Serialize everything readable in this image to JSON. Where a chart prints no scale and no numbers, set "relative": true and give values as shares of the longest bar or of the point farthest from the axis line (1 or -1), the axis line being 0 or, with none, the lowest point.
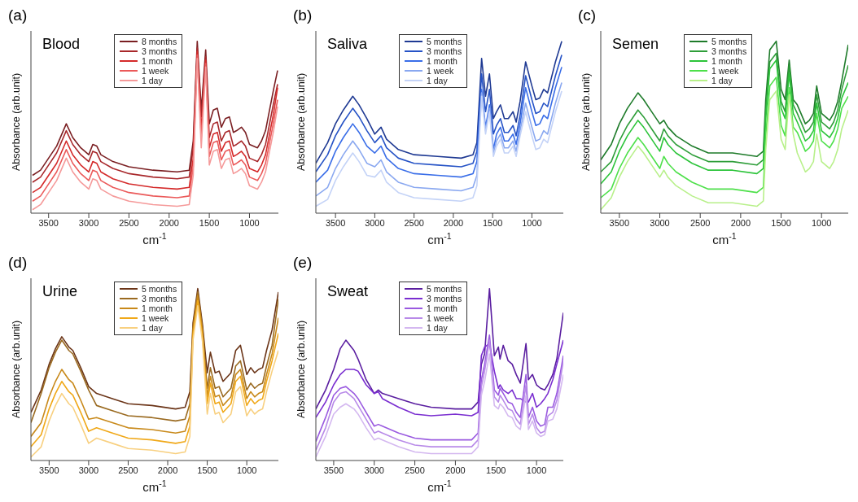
{
  "chart_data": [
    {
      "type": "line",
      "title": "(a)",
      "subtitle": "Blood",
      "xlabel": "cm$^{-1}$",
      "ylabel": "Absorbance (arb.unit)",
      "relative": true,
      "legend": "top",
      "xlim": [
        3720,
        640
      ],
      "xticks": [
        3500,
        3000,
        2500,
        2000,
        1500,
        1000
      ],
      "x": [
        3700,
        3600,
        3500,
        3400,
        3280,
        3200,
        3100,
        3000,
        2950,
        2900,
        2850,
        2700,
        2500,
        2200,
        1900,
        1750,
        1700,
        1650,
        1600,
        1545,
        1500,
        1450,
        1400,
        1350,
        1300,
        1250,
        1200,
        1160,
        1100,
        1050,
        1000,
        900,
        850,
        800,
        750,
        700,
        650
      ],
      "series": [
        {
          "name": "8 months",
          "color": "#7a1f22",
          "values": [
            0.22,
            0.25,
            0.32,
            0.39,
            0.52,
            0.44,
            0.38,
            0.34,
            0.4,
            0.39,
            0.34,
            0.3,
            0.27,
            0.25,
            0.24,
            0.25,
            0.42,
            1.0,
            0.6,
            0.95,
            0.52,
            0.6,
            0.61,
            0.5,
            0.55,
            0.56,
            0.47,
            0.48,
            0.5,
            0.47,
            0.4,
            0.38,
            0.42,
            0.48,
            0.6,
            0.72,
            0.83
          ]
        },
        {
          "name": "3 months",
          "color": "#a8282b",
          "values": [
            0.18,
            0.21,
            0.28,
            0.35,
            0.48,
            0.4,
            0.34,
            0.3,
            0.36,
            0.35,
            0.3,
            0.26,
            0.23,
            0.21,
            0.2,
            0.21,
            0.38,
            0.96,
            0.56,
            0.91,
            0.44,
            0.52,
            0.53,
            0.42,
            0.47,
            0.48,
            0.39,
            0.4,
            0.42,
            0.39,
            0.32,
            0.3,
            0.34,
            0.4,
            0.52,
            0.64,
            0.75
          ]
        },
        {
          "name": "1 month",
          "color": "#d42a2a",
          "values": [
            0.12,
            0.15,
            0.22,
            0.29,
            0.42,
            0.34,
            0.28,
            0.24,
            0.3,
            0.29,
            0.24,
            0.2,
            0.17,
            0.15,
            0.14,
            0.15,
            0.32,
            0.94,
            0.48,
            0.89,
            0.38,
            0.46,
            0.47,
            0.36,
            0.41,
            0.42,
            0.33,
            0.34,
            0.36,
            0.33,
            0.26,
            0.24,
            0.28,
            0.34,
            0.46,
            0.58,
            0.73
          ]
        },
        {
          "name": "1 week",
          "color": "#eb5a5a",
          "values": [
            0.07,
            0.1,
            0.17,
            0.24,
            0.37,
            0.29,
            0.23,
            0.19,
            0.25,
            0.24,
            0.19,
            0.15,
            0.12,
            0.1,
            0.09,
            0.1,
            0.27,
            0.92,
            0.44,
            0.87,
            0.33,
            0.41,
            0.42,
            0.31,
            0.36,
            0.37,
            0.28,
            0.29,
            0.31,
            0.28,
            0.21,
            0.19,
            0.23,
            0.29,
            0.41,
            0.53,
            0.66
          ]
        },
        {
          "name": "1 day",
          "color": "#f59a9a",
          "values": [
            0.02,
            0.05,
            0.12,
            0.19,
            0.32,
            0.24,
            0.18,
            0.14,
            0.2,
            0.19,
            0.14,
            0.1,
            0.07,
            0.05,
            0.04,
            0.05,
            0.22,
            0.9,
            0.38,
            0.85,
            0.28,
            0.36,
            0.37,
            0.26,
            0.31,
            0.32,
            0.23,
            0.24,
            0.26,
            0.23,
            0.16,
            0.14,
            0.18,
            0.24,
            0.36,
            0.48,
            0.62
          ]
        }
      ]
    },
    {
      "type": "line",
      "title": "(b)",
      "subtitle": "Saliva",
      "xlabel": "cm$^{-1}$",
      "ylabel": "Absorbance (arb.unit)",
      "relative": true,
      "legend": "top",
      "xlim": [
        3750,
        600
      ],
      "xticks": [
        3500,
        3000,
        2500,
        2000,
        1500,
        1000
      ],
      "x": [
        3750,
        3600,
        3500,
        3400,
        3280,
        3200,
        3100,
        3000,
        2920,
        2850,
        2700,
        2500,
        2200,
        1900,
        1750,
        1700,
        1640,
        1590,
        1540,
        1490,
        1450,
        1400,
        1350,
        1300,
        1240,
        1200,
        1150,
        1080,
        1000,
        950,
        900,
        850,
        800,
        700,
        620
      ],
      "series": [
        {
          "name": "5 months",
          "color": "#1f3a93",
          "values": [
            0.29,
            0.41,
            0.52,
            0.6,
            0.68,
            0.63,
            0.55,
            0.46,
            0.5,
            0.43,
            0.37,
            0.34,
            0.33,
            0.32,
            0.34,
            0.41,
            0.9,
            0.68,
            0.81,
            0.55,
            0.59,
            0.63,
            0.55,
            0.55,
            0.59,
            0.53,
            0.65,
            0.88,
            0.74,
            0.66,
            0.67,
            0.72,
            0.7,
            0.88,
            1.0
          ]
        },
        {
          "name": "3 months",
          "color": "#2653c6",
          "values": [
            0.24,
            0.34,
            0.45,
            0.53,
            0.61,
            0.56,
            0.48,
            0.41,
            0.45,
            0.38,
            0.32,
            0.29,
            0.28,
            0.27,
            0.29,
            0.36,
            0.81,
            0.59,
            0.72,
            0.46,
            0.51,
            0.55,
            0.47,
            0.47,
            0.51,
            0.45,
            0.57,
            0.8,
            0.66,
            0.58,
            0.59,
            0.64,
            0.62,
            0.8,
            0.92
          ]
        },
        {
          "name": "1 month",
          "color": "#3a6ee8",
          "values": [
            0.18,
            0.25,
            0.36,
            0.44,
            0.52,
            0.47,
            0.39,
            0.35,
            0.39,
            0.32,
            0.26,
            0.23,
            0.22,
            0.21,
            0.23,
            0.3,
            0.72,
            0.5,
            0.63,
            0.37,
            0.46,
            0.5,
            0.42,
            0.42,
            0.46,
            0.4,
            0.52,
            0.73,
            0.59,
            0.51,
            0.52,
            0.57,
            0.55,
            0.73,
            0.85
          ]
        },
        {
          "name": "1 week",
          "color": "#8aa8f0",
          "values": [
            0.1,
            0.15,
            0.26,
            0.34,
            0.42,
            0.37,
            0.29,
            0.27,
            0.31,
            0.24,
            0.18,
            0.15,
            0.14,
            0.13,
            0.15,
            0.22,
            0.7,
            0.48,
            0.61,
            0.35,
            0.42,
            0.46,
            0.38,
            0.38,
            0.42,
            0.36,
            0.48,
            0.64,
            0.5,
            0.42,
            0.43,
            0.48,
            0.46,
            0.64,
            0.76
          ]
        },
        {
          "name": "1 day",
          "color": "#c4d3f7",
          "values": [
            0.04,
            0.08,
            0.19,
            0.27,
            0.35,
            0.3,
            0.22,
            0.21,
            0.25,
            0.18,
            0.12,
            0.09,
            0.08,
            0.07,
            0.09,
            0.16,
            0.68,
            0.46,
            0.59,
            0.33,
            0.39,
            0.43,
            0.35,
            0.35,
            0.39,
            0.33,
            0.45,
            0.59,
            0.45,
            0.37,
            0.38,
            0.43,
            0.41,
            0.59,
            0.71
          ]
        }
      ]
    },
    {
      "type": "line",
      "title": "(c)",
      "subtitle": "Semen",
      "xlabel": "cm$^{-1}$",
      "ylabel": "Absorbance (arb.unit)",
      "relative": true,
      "legend": "top",
      "xlim": [
        3730,
        670
      ],
      "xticks": [
        3500,
        3000,
        2500,
        2000,
        1500,
        1000
      ],
      "x": [
        3730,
        3600,
        3500,
        3400,
        3270,
        3200,
        3100,
        3000,
        2950,
        2900,
        2800,
        2600,
        2400,
        2100,
        1800,
        1720,
        1690,
        1640,
        1560,
        1500,
        1450,
        1400,
        1350,
        1300,
        1200,
        1150,
        1100,
        1060,
        1000,
        950,
        900,
        850,
        800,
        750,
        670
      ],
      "series": [
        {
          "name": "5 months",
          "color": "#1e7b2a",
          "values": [
            0.31,
            0.4,
            0.52,
            0.61,
            0.7,
            0.66,
            0.59,
            0.52,
            0.54,
            0.5,
            0.45,
            0.39,
            0.35,
            0.35,
            0.33,
            0.36,
            0.66,
            0.95,
            1.0,
            0.72,
            0.66,
            0.89,
            0.66,
            0.63,
            0.52,
            0.54,
            0.58,
            0.74,
            0.58,
            0.56,
            0.54,
            0.58,
            0.65,
            0.77,
            0.98
          ]
        },
        {
          "name": "3 months",
          "color": "#2f9e3a",
          "values": [
            0.24,
            0.3,
            0.42,
            0.51,
            0.6,
            0.56,
            0.49,
            0.42,
            0.49,
            0.45,
            0.4,
            0.34,
            0.3,
            0.3,
            0.28,
            0.31,
            0.59,
            0.88,
            0.93,
            0.65,
            0.59,
            0.86,
            0.63,
            0.58,
            0.47,
            0.49,
            0.53,
            0.69,
            0.53,
            0.51,
            0.49,
            0.53,
            0.6,
            0.72,
            0.86
          ]
        },
        {
          "name": "1 month",
          "color": "#2cc43a",
          "values": [
            0.17,
            0.24,
            0.36,
            0.45,
            0.54,
            0.5,
            0.43,
            0.36,
            0.44,
            0.4,
            0.35,
            0.29,
            0.25,
            0.25,
            0.23,
            0.26,
            0.55,
            0.84,
            0.89,
            0.61,
            0.55,
            0.81,
            0.58,
            0.53,
            0.42,
            0.44,
            0.48,
            0.64,
            0.48,
            0.46,
            0.44,
            0.48,
            0.55,
            0.67,
            0.76
          ]
        },
        {
          "name": "1 week",
          "color": "#4ee04a",
          "values": [
            0.09,
            0.14,
            0.26,
            0.35,
            0.44,
            0.4,
            0.33,
            0.26,
            0.33,
            0.29,
            0.24,
            0.18,
            0.14,
            0.14,
            0.12,
            0.15,
            0.45,
            0.74,
            0.79,
            0.51,
            0.45,
            0.73,
            0.5,
            0.47,
            0.36,
            0.38,
            0.42,
            0.58,
            0.42,
            0.4,
            0.38,
            0.42,
            0.49,
            0.61,
            0.68
          ]
        },
        {
          "name": "1 day",
          "color": "#b8f08a",
          "values": [
            0.02,
            0.09,
            0.21,
            0.3,
            0.39,
            0.35,
            0.28,
            0.21,
            0.25,
            0.21,
            0.16,
            0.1,
            0.06,
            0.06,
            0.04,
            0.07,
            0.37,
            0.66,
            0.71,
            0.43,
            0.37,
            0.69,
            0.46,
            0.35,
            0.24,
            0.26,
            0.3,
            0.46,
            0.3,
            0.28,
            0.26,
            0.3,
            0.37,
            0.49,
            0.6
          ]
        }
      ]
    },
    {
      "type": "line",
      "title": "(d)",
      "subtitle": "Urine",
      "xlabel": "cm$^{-1}$",
      "ylabel": "Absorbance (arb.unit)",
      "relative": true,
      "legend": "top",
      "xlim": [
        3730,
        600
      ],
      "xticks": [
        3500,
        3000,
        2500,
        2000,
        1500,
        1000
      ],
      "x": [
        3730,
        3600,
        3500,
        3420,
        3340,
        3250,
        3200,
        3100,
        3000,
        2900,
        2700,
        2500,
        2200,
        1900,
        1780,
        1720,
        1680,
        1620,
        1560,
        1500,
        1460,
        1400,
        1350,
        1300,
        1200,
        1140,
        1080,
        1000,
        950,
        900,
        850,
        800,
        750,
        680,
        600
      ],
      "series": [
        {
          "name": "5 months",
          "color": "#6b3518",
          "values": [
            0.28,
            0.41,
            0.56,
            0.65,
            0.72,
            0.66,
            0.64,
            0.54,
            0.43,
            0.39,
            0.36,
            0.33,
            0.32,
            0.3,
            0.31,
            0.4,
            0.8,
            1.0,
            0.79,
            0.51,
            0.63,
            0.51,
            0.52,
            0.46,
            0.51,
            0.64,
            0.67,
            0.5,
            0.54,
            0.51,
            0.53,
            0.54,
            0.64,
            0.76,
            0.98
          ]
        },
        {
          "name": "3 months",
          "color": "#9a6a20",
          "values": [
            0.22,
            0.39,
            0.54,
            0.63,
            0.7,
            0.64,
            0.62,
            0.52,
            0.41,
            0.32,
            0.29,
            0.26,
            0.25,
            0.23,
            0.24,
            0.33,
            0.78,
            0.98,
            0.77,
            0.42,
            0.54,
            0.42,
            0.43,
            0.37,
            0.42,
            0.55,
            0.58,
            0.41,
            0.45,
            0.42,
            0.44,
            0.45,
            0.55,
            0.67,
            0.94
          ]
        },
        {
          "name": "1 month",
          "color": "#c8891a",
          "values": [
            0.14,
            0.22,
            0.37,
            0.46,
            0.53,
            0.47,
            0.45,
            0.35,
            0.24,
            0.25,
            0.22,
            0.19,
            0.18,
            0.16,
            0.17,
            0.26,
            0.76,
            0.96,
            0.75,
            0.37,
            0.49,
            0.37,
            0.38,
            0.32,
            0.37,
            0.5,
            0.53,
            0.36,
            0.4,
            0.37,
            0.39,
            0.4,
            0.5,
            0.62,
            0.83
          ]
        },
        {
          "name": "1 week",
          "color": "#f0a818",
          "values": [
            0.08,
            0.15,
            0.3,
            0.39,
            0.46,
            0.4,
            0.38,
            0.28,
            0.17,
            0.19,
            0.16,
            0.13,
            0.12,
            0.1,
            0.11,
            0.2,
            0.73,
            0.93,
            0.72,
            0.33,
            0.45,
            0.33,
            0.34,
            0.28,
            0.33,
            0.46,
            0.49,
            0.32,
            0.36,
            0.33,
            0.35,
            0.36,
            0.46,
            0.58,
            0.74
          ]
        },
        {
          "name": "1 day",
          "color": "#f8d080",
          "values": [
            0.02,
            0.08,
            0.23,
            0.32,
            0.39,
            0.33,
            0.31,
            0.21,
            0.1,
            0.13,
            0.1,
            0.07,
            0.06,
            0.04,
            0.05,
            0.14,
            0.7,
            0.9,
            0.69,
            0.27,
            0.39,
            0.27,
            0.28,
            0.22,
            0.27,
            0.4,
            0.43,
            0.26,
            0.3,
            0.27,
            0.29,
            0.3,
            0.4,
            0.52,
            0.64
          ]
        }
      ]
    },
    {
      "type": "line",
      "title": "(e)",
      "subtitle": "Sweat",
      "xlabel": "cm$^{-1}$",
      "ylabel": "Absorbance (arb.unit)",
      "relative": true,
      "legend": "top",
      "xlim": [
        3720,
        670
      ],
      "xticks": [
        3500,
        3000,
        2500,
        2000,
        1500,
        1000
      ],
      "x": [
        3720,
        3600,
        3500,
        3420,
        3350,
        3250,
        3200,
        3100,
        3000,
        2950,
        2900,
        2700,
        2500,
        2300,
        2000,
        1800,
        1720,
        1680,
        1640,
        1580,
        1520,
        1470,
        1450,
        1410,
        1350,
        1300,
        1250,
        1200,
        1130,
        1100,
        1050,
        1000,
        950,
        900,
        860,
        800,
        750,
        670
      ],
      "series": [
        {
          "name": "5 months",
          "color": "#5a1ea0",
          "values": [
            0.3,
            0.41,
            0.53,
            0.65,
            0.7,
            0.64,
            0.59,
            0.47,
            0.39,
            0.41,
            0.39,
            0.36,
            0.33,
            0.31,
            0.3,
            0.3,
            0.34,
            0.56,
            0.62,
            1.0,
            0.61,
            0.66,
            0.59,
            0.67,
            0.58,
            0.56,
            0.5,
            0.45,
            0.68,
            0.47,
            0.5,
            0.44,
            0.42,
            0.41,
            0.44,
            0.5,
            0.59,
            0.86
          ]
        },
        {
          "name": "3 months",
          "color": "#7a2ed0",
          "values": [
            0.25,
            0.34,
            0.44,
            0.5,
            0.53,
            0.53,
            0.52,
            0.44,
            0.39,
            0.4,
            0.36,
            0.31,
            0.27,
            0.26,
            0.27,
            0.26,
            0.28,
            0.61,
            0.66,
            0.68,
            0.52,
            0.42,
            0.44,
            0.41,
            0.39,
            0.41,
            0.36,
            0.36,
            0.34,
            0.34,
            0.39,
            0.31,
            0.33,
            0.36,
            0.39,
            0.47,
            0.56,
            0.7
          ]
        },
        {
          "name": "1 month",
          "color": "#9a5ae0",
          "values": [
            0.11,
            0.25,
            0.38,
            0.42,
            0.43,
            0.39,
            0.36,
            0.28,
            0.2,
            0.21,
            0.2,
            0.16,
            0.13,
            0.12,
            0.12,
            0.12,
            0.16,
            0.47,
            0.56,
            0.73,
            0.41,
            0.38,
            0.42,
            0.39,
            0.34,
            0.33,
            0.28,
            0.25,
            0.5,
            0.25,
            0.31,
            0.23,
            0.2,
            0.21,
            0.31,
            0.31,
            0.39,
            0.61
          ]
        },
        {
          "name": "1 week",
          "color": "#b88ae8",
          "values": [
            0.06,
            0.19,
            0.34,
            0.39,
            0.4,
            0.36,
            0.32,
            0.24,
            0.16,
            0.17,
            0.16,
            0.12,
            0.09,
            0.08,
            0.08,
            0.08,
            0.12,
            0.43,
            0.52,
            0.7,
            0.37,
            0.34,
            0.38,
            0.35,
            0.3,
            0.29,
            0.24,
            0.21,
            0.44,
            0.21,
            0.27,
            0.19,
            0.16,
            0.17,
            0.26,
            0.28,
            0.35,
            0.58
          ]
        },
        {
          "name": "1 day",
          "color": "#d4b8f0",
          "values": [
            0.02,
            0.14,
            0.27,
            0.31,
            0.33,
            0.3,
            0.27,
            0.19,
            0.12,
            0.13,
            0.12,
            0.08,
            0.05,
            0.04,
            0.04,
            0.04,
            0.08,
            0.38,
            0.46,
            0.62,
            0.32,
            0.3,
            0.33,
            0.31,
            0.26,
            0.25,
            0.2,
            0.18,
            0.38,
            0.18,
            0.23,
            0.16,
            0.14,
            0.15,
            0.23,
            0.24,
            0.3,
            0.5
          ]
        }
      ]
    }
  ]
}
